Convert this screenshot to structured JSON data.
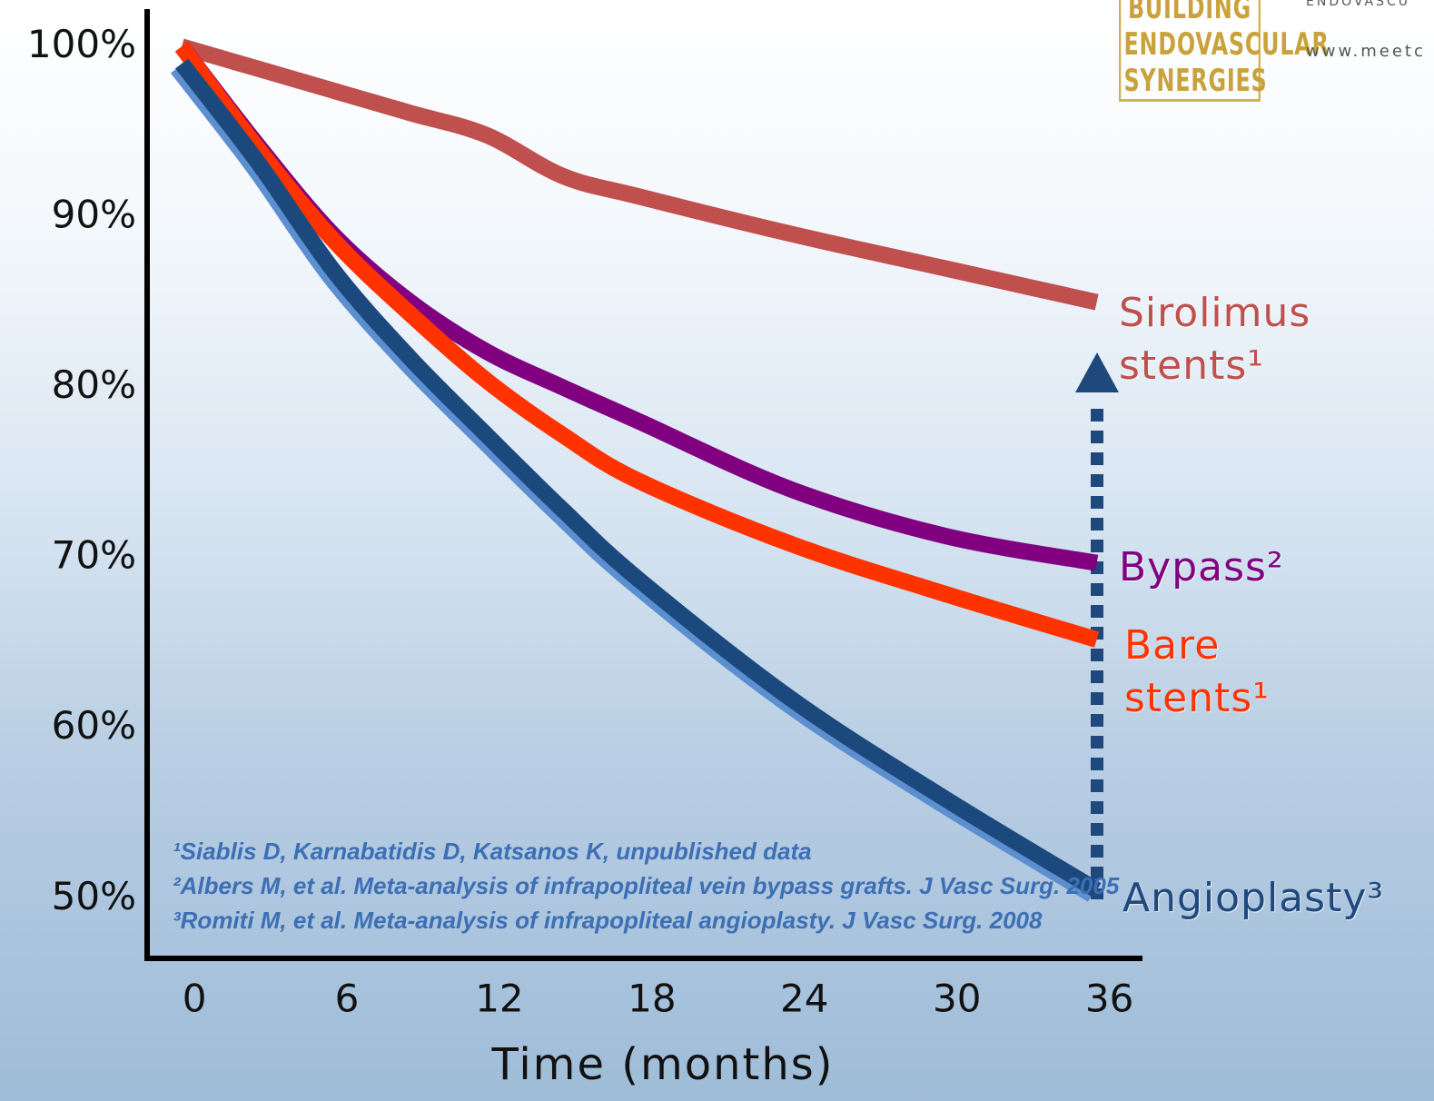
{
  "chart_data": {
    "type": "line",
    "x": [
      0,
      3,
      6,
      9,
      12,
      15,
      18,
      24,
      30,
      36
    ],
    "series": [
      {
        "name": "Sirolimus stents¹",
        "color": "#c0504d",
        "values": [
          100,
          98.7,
          97.4,
          96.1,
          94.8,
          92.4,
          91.2,
          89,
          87,
          85
        ]
      },
      {
        "name": "Bypass²",
        "color": "#800080",
        "values": [
          100,
          94.2,
          88.9,
          85,
          82.1,
          80,
          78,
          74,
          71.3,
          69.7
        ]
      },
      {
        "name": "Bare stents¹",
        "color": "#ff3300",
        "values": [
          100,
          94,
          88.6,
          84.3,
          80.4,
          77.2,
          74.5,
          70.8,
          67.9,
          65.2
        ]
      },
      {
        "name": "Angioplasty³",
        "color": "#1f497d",
        "values": [
          99,
          93.2,
          86.8,
          81.7,
          77.2,
          72.8,
          68.7,
          61.7,
          55.9,
          50.5
        ]
      }
    ],
    "xlim": [
      -1.36,
      37.8
    ],
    "ylim": [
      46.5,
      102.2
    ],
    "xticks": [
      0,
      6,
      12,
      18,
      24,
      30,
      36
    ],
    "yticks": [
      {
        "value": 50,
        "label": "50%"
      },
      {
        "value": 60,
        "label": "60%"
      },
      {
        "value": 70,
        "label": "70%"
      },
      {
        "value": 80,
        "label": "80%"
      },
      {
        "value": 90,
        "label": "90%"
      },
      {
        "value": 100,
        "label": "100%"
      }
    ],
    "x_label": "Time (months)",
    "footnotes": [
      "¹Siablis D, Karnabatidis D, Katsanos K, unpublished data",
      "²Albers M, et al. Meta-analysis of infrapopliteal vein bypass grafts. J Vasc Surg. 2005",
      "³Romiti M, et al. Meta-analysis of infrapopliteal angioplasty. J Vasc Surg. 2008"
    ]
  },
  "logo": {
    "lines": [
      "BUILDING",
      "ENDOVASCULAR",
      "SYNERGIES"
    ],
    "tagline": "ENDOVASCU",
    "url": "www.meetc"
  }
}
